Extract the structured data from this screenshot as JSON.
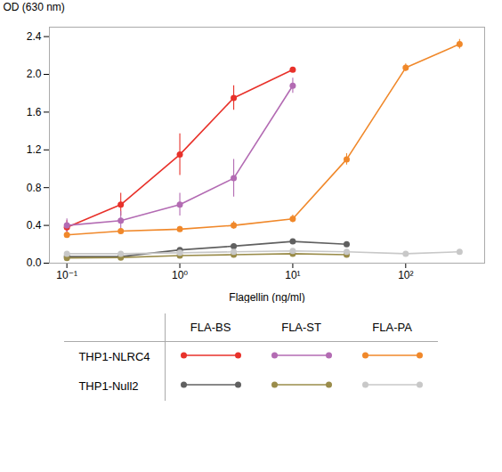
{
  "chart_data": {
    "type": "line",
    "xlabel": "Flagellin (ng/ml)",
    "ylabel": "OD (630 nm)",
    "log": "x",
    "xlim": [
      0.07,
      500
    ],
    "xticks": [
      {
        "value": 0.1,
        "label": "10⁻¹"
      },
      {
        "value": 1,
        "label": "10⁰"
      },
      {
        "value": 10,
        "label": "10¹"
      },
      {
        "value": 100,
        "label": "10²"
      }
    ],
    "ylim": [
      0.0,
      2.5
    ],
    "yticks": [
      {
        "value": 0.0,
        "label": "0.0"
      },
      0.4,
      0.8,
      1.2,
      1.6,
      {
        "value": 2.0,
        "label": "2.0"
      },
      2.4
    ],
    "grid": false,
    "legend": "bottom",
    "marker": "circle",
    "x": [
      0.1,
      0.3,
      1.0,
      3.0,
      10.0,
      30.0,
      100.0,
      300.0
    ],
    "series": [
      {
        "name": "FLA-BS",
        "group": "THP1-NLRC4",
        "color": "#e8312a",
        "values": [
          0.38,
          0.62,
          1.15,
          1.75,
          2.05,
          null,
          null,
          null
        ],
        "yerr": [
          0.07,
          0.12,
          0.22,
          0.13,
          0.025,
          null,
          null,
          null
        ]
      },
      {
        "name": "FLA-ST",
        "group": "THP1-NLRC4",
        "color": "#b36bb3",
        "values": [
          0.4,
          0.45,
          0.62,
          0.9,
          1.88,
          null,
          null,
          null
        ],
        "yerr": [
          0.07,
          0.1,
          0.12,
          0.2,
          0.08,
          null,
          null,
          null
        ]
      },
      {
        "name": "FLA-PA",
        "group": "THP1-NLRC4",
        "color": "#f0882a",
        "values": [
          0.3,
          0.34,
          0.36,
          0.4,
          0.47,
          1.1,
          2.07,
          2.32
        ],
        "yerr": [
          0.02,
          0.02,
          0.03,
          0.04,
          0.04,
          0.06,
          0.04,
          0.05
        ]
      },
      {
        "name": "FLA-BS",
        "group": "THP1-Null2",
        "color": "#606060",
        "values": [
          0.07,
          0.07,
          0.14,
          0.18,
          0.23,
          0.2,
          null,
          null
        ],
        "yerr": [
          0.005,
          0.005,
          0.02,
          0.01,
          0.015,
          0.025,
          null,
          null
        ]
      },
      {
        "name": "FLA-ST",
        "group": "THP1-Null2",
        "color": "#9a8c4a",
        "values": [
          0.055,
          0.06,
          0.08,
          0.09,
          0.1,
          0.09,
          null,
          null
        ],
        "yerr": [
          0.005,
          0.005,
          0.005,
          0.005,
          0.005,
          0.005,
          null,
          null
        ]
      },
      {
        "name": "FLA-PA",
        "group": "THP1-Null2",
        "color": "#c8c8c8",
        "values": [
          0.1,
          0.1,
          0.11,
          0.12,
          0.13,
          0.12,
          0.1,
          0.12
        ],
        "yerr": [
          0.005,
          0.005,
          0.005,
          0.005,
          0.015,
          0.025,
          0.005,
          0.005
        ]
      }
    ]
  }
}
